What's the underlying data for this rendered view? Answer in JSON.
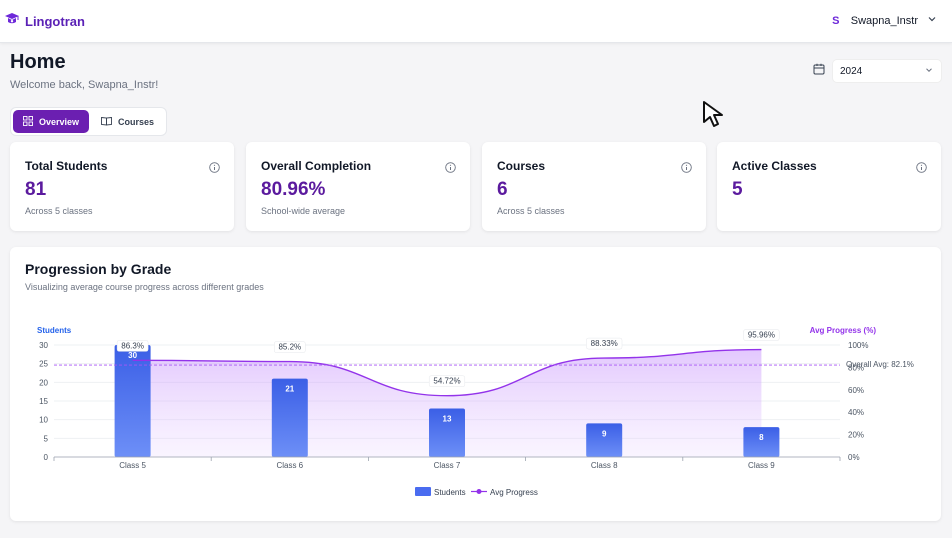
{
  "app": {
    "name": "Lingotran",
    "logo_icon": "graduation-cap-icon"
  },
  "user": {
    "initial": "S",
    "name": "Swapna_Instr"
  },
  "header": {
    "title": "Home",
    "welcome": "Welcome back, Swapna_Instr!"
  },
  "year_filter": {
    "value": "2024",
    "icon": "calendar-icon"
  },
  "tabs": [
    {
      "label": "Overview",
      "icon": "grid-icon",
      "active": true
    },
    {
      "label": "Courses",
      "icon": "book-icon",
      "active": false
    }
  ],
  "stats": [
    {
      "title": "Total Students",
      "value": "81",
      "sub": "Across 5 classes"
    },
    {
      "title": "Overall Completion",
      "value": "80.96%",
      "sub": "School-wide average"
    },
    {
      "title": "Courses",
      "value": "6",
      "sub": "Across 5 classes"
    },
    {
      "title": "Active Classes",
      "value": "5",
      "sub": ""
    }
  ],
  "chart_section": {
    "title": "Progression by Grade",
    "subtitle": "Visualizing average course progress across different grades"
  },
  "colors": {
    "accent": "#6b1fb1",
    "bar": "#4a6cf0",
    "line": "#9333ea",
    "value": "#5b1a9e"
  },
  "chart_data": {
    "type": "bar",
    "categories": [
      "Class 5",
      "Class 6",
      "Class 7",
      "Class 8",
      "Class 9"
    ],
    "series": [
      {
        "name": "Students",
        "type": "bar",
        "axis": "left",
        "values": [
          30,
          21,
          13,
          9,
          8
        ],
        "labels": [
          "30",
          "21",
          "13",
          "9",
          "8"
        ]
      },
      {
        "name": "Avg Progress",
        "type": "line",
        "axis": "right",
        "values": [
          86.3,
          85.2,
          54.72,
          88.33,
          95.96
        ],
        "labels": [
          "86.3%",
          "85.2%",
          "54.72%",
          "88.33%",
          "95.96%"
        ]
      }
    ],
    "ylabel_left": "Students",
    "ylabel_right": "Avg Progress (%)",
    "ylim_left": [
      0,
      30
    ],
    "yticks_left": [
      "0",
      "5",
      "10",
      "15",
      "20",
      "25",
      "30"
    ],
    "ylim_right": [
      0,
      100
    ],
    "yticks_right": [
      "0%",
      "20%",
      "40%",
      "60%",
      "80%",
      "100%"
    ],
    "reference_line": {
      "label": "Overall Avg: 82.1%",
      "value": 82.1
    },
    "legend": [
      "Students",
      "Avg Progress"
    ],
    "legend_position": "bottom",
    "grid": true
  }
}
